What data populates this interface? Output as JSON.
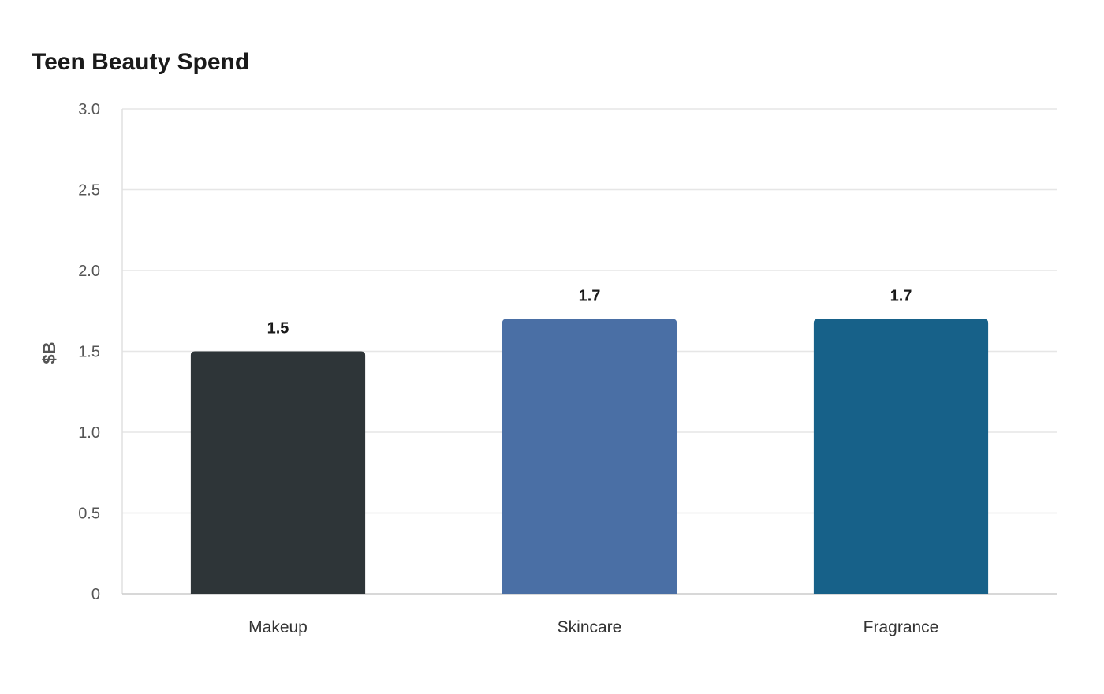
{
  "chart_data": {
    "type": "bar",
    "title": "Teen Beauty Spend",
    "xlabel": "",
    "ylabel": "$B",
    "categories": [
      "Makeup",
      "Skincare",
      "Fragrance"
    ],
    "values": [
      1.5,
      1.7,
      1.7
    ],
    "value_labels": [
      "1.5",
      "1.7",
      "1.7"
    ],
    "colors": [
      "#2e3538",
      "#4a6fa5",
      "#176189"
    ],
    "ylim": [
      0,
      3.0
    ],
    "yticks": [
      0,
      0.5,
      1.0,
      1.5,
      2.0,
      2.5,
      3.0
    ],
    "ytick_labels": [
      "0",
      "0.5",
      "1.0",
      "1.5",
      "2.0",
      "2.5",
      "3.0"
    ],
    "grid": true,
    "legend": "none"
  }
}
